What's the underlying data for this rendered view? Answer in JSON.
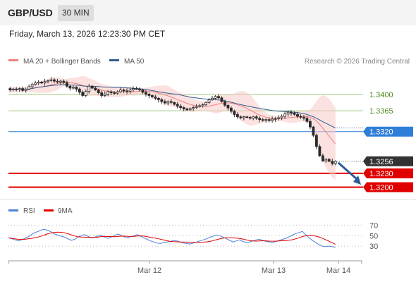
{
  "header": {
    "pair": "GBP/USD",
    "timeframe": "30 MIN",
    "datetime": "Friday, March 13, 2026 12:23:30 PM CET"
  },
  "chart_data": [
    {
      "type": "candlestick",
      "legend": [
        {
          "label": "MA 20 + Bollinger Bands",
          "color": "#f08080"
        },
        {
          "label": "MA 50",
          "color": "#2f5b8e"
        }
      ],
      "credit": "Research © 2026 Trading Central",
      "ylim": [
        1.3178,
        1.3452
      ],
      "levels": [
        {
          "value": 1.34,
          "label": "1.3400",
          "kind": "resistance",
          "color": "#79b34a"
        },
        {
          "value": 1.3365,
          "label": "1.3365",
          "kind": "resistance",
          "color": "#79b34a"
        },
        {
          "value": 1.332,
          "label": "1.3320",
          "kind": "pivot",
          "color": "#2f7fd8"
        },
        {
          "value": 1.3256,
          "label": "1.3256",
          "kind": "last-price",
          "color": "#333333"
        },
        {
          "value": 1.323,
          "label": "1.3230",
          "kind": "target",
          "color": "#e00000"
        },
        {
          "value": 1.32,
          "label": "1.3200",
          "kind": "target",
          "color": "#e00000"
        }
      ],
      "forecast": {
        "from": 1.3253,
        "to": 1.321,
        "color": "#2c5b9c"
      },
      "closes": [
        1.341,
        1.3412,
        1.3411,
        1.3413,
        1.3409,
        1.3412,
        1.3417,
        1.3422,
        1.3425,
        1.3427,
        1.3425,
        1.3428,
        1.343,
        1.3432,
        1.3429,
        1.3427,
        1.3429,
        1.3426,
        1.3418,
        1.3414,
        1.3416,
        1.3412,
        1.3405,
        1.3398,
        1.3407,
        1.3418,
        1.3414,
        1.341,
        1.3404,
        1.3398,
        1.3401,
        1.3406,
        1.3404,
        1.3403,
        1.3406,
        1.341,
        1.3408,
        1.3407,
        1.341,
        1.3413,
        1.3412,
        1.341,
        1.3405,
        1.3401,
        1.3398,
        1.3395,
        1.3392,
        1.3389,
        1.3385,
        1.3382,
        1.3385,
        1.3383,
        1.3379,
        1.3375,
        1.3372,
        1.3369,
        1.3367,
        1.337,
        1.3372,
        1.3374,
        1.3376,
        1.3378,
        1.3383,
        1.3389,
        1.3392,
        1.3396,
        1.3393,
        1.3385,
        1.3377,
        1.3371,
        1.3364,
        1.3357,
        1.3352,
        1.335,
        1.3352,
        1.3351,
        1.3349,
        1.3352,
        1.3349,
        1.3346,
        1.3345,
        1.3346,
        1.3344,
        1.3347,
        1.3348,
        1.335,
        1.3353,
        1.3358,
        1.3362,
        1.336,
        1.3357,
        1.3353,
        1.3351,
        1.3349,
        1.3342,
        1.333,
        1.3312,
        1.3288,
        1.3268,
        1.3257,
        1.326,
        1.3256,
        1.3251,
        1.3256
      ],
      "time_axis": [
        "Mar 12",
        "Mar 13",
        "Mar 14"
      ]
    },
    {
      "type": "line",
      "legend": [
        {
          "label": "RSI",
          "color": "#4f7fd9"
        },
        {
          "label": "9MA",
          "color": "#e00000"
        }
      ],
      "ylim": [
        10,
        80
      ],
      "yticks": [
        "70",
        "50",
        "30"
      ],
      "rsi": [
        46,
        44,
        42,
        40,
        42,
        45,
        48,
        52,
        56,
        58,
        61,
        62,
        60,
        57,
        53,
        51,
        49,
        47,
        44,
        41,
        43,
        47,
        50,
        52,
        49,
        46,
        47,
        49,
        51,
        48,
        45,
        47,
        50,
        53,
        51,
        48,
        46,
        48,
        50,
        52,
        49,
        46,
        43,
        40,
        38,
        36,
        35,
        37,
        38,
        39,
        41,
        40,
        38,
        36,
        35,
        34,
        36,
        38,
        40,
        42,
        44,
        47,
        49,
        51,
        50,
        47,
        44,
        41,
        38,
        40,
        42,
        39,
        37,
        38,
        40,
        42,
        43,
        41,
        39,
        38,
        37,
        39,
        41,
        43,
        45,
        48,
        51,
        54,
        56,
        58,
        52,
        46,
        41,
        37,
        33,
        30,
        29,
        30,
        29,
        28
      ]
    }
  ]
}
